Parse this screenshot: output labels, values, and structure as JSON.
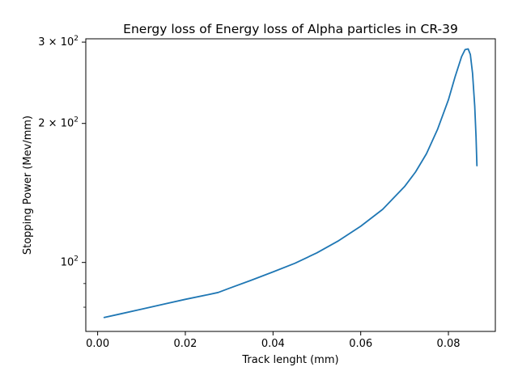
{
  "chart_data": {
    "type": "line",
    "title": "Energy loss of Energy loss of Alpha particles in CR-39",
    "xlabel": "Track lenght (mm)",
    "ylabel": "Stopping Power (Mev/mm)",
    "yscale": "log",
    "xlim": [
      -0.0027,
      0.0907
    ],
    "ylim": [
      70.9,
      305
    ],
    "xticks": [
      {
        "value": 0.0,
        "label": "0.00"
      },
      {
        "value": 0.02,
        "label": "0.02"
      },
      {
        "value": 0.04,
        "label": "0.04"
      },
      {
        "value": 0.06,
        "label": "0.06"
      },
      {
        "value": 0.08,
        "label": "0.08"
      }
    ],
    "yticks_major": [
      {
        "value": 100,
        "base": "10",
        "exp": "2",
        "coef": ""
      },
      {
        "value": 200,
        "base": "10",
        "exp": "2",
        "coef": "2 × "
      },
      {
        "value": 300,
        "base": "10",
        "exp": "2",
        "coef": "3 × "
      }
    ],
    "yticks_minor": [
      80,
      90
    ],
    "grid": false,
    "series": [
      {
        "color": "#1f77b4",
        "x": [
          0.0015,
          0.005,
          0.01,
          0.015,
          0.02,
          0.025,
          0.0275,
          0.03,
          0.035,
          0.04,
          0.045,
          0.05,
          0.055,
          0.06,
          0.065,
          0.07,
          0.0725,
          0.075,
          0.0775,
          0.08,
          0.0815,
          0.083,
          0.0838,
          0.0845,
          0.085,
          0.0855,
          0.086,
          0.0863,
          0.0865
        ],
        "y": [
          76,
          77.3,
          79.2,
          81.2,
          83.2,
          85.1,
          86.1,
          87.9,
          91.5,
          95.4,
          99.6,
          104.9,
          111.5,
          119.8,
          130.3,
          146,
          157,
          172,
          194,
          225,
          252,
          279,
          289,
          290,
          282,
          257,
          218,
          187,
          162
        ]
      }
    ]
  }
}
